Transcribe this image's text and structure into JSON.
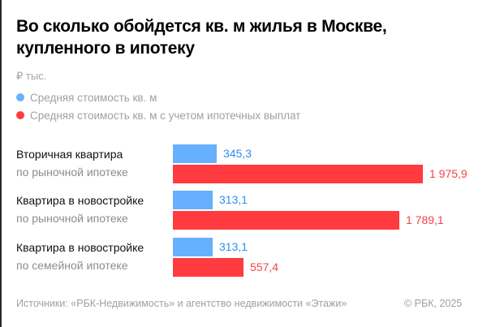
{
  "header": {
    "title": "Во сколько обойдется кв. м жилья в Москве, купленного в ипотеку",
    "unit": "₽ тыс."
  },
  "legend": [
    {
      "label": "Средняя стоимость кв. м",
      "color": "#66b0ff"
    },
    {
      "label": "Средняя стоимость кв. м с учетом ипотечных выплат",
      "color": "#ff3b3f"
    }
  ],
  "groups": [
    {
      "line1": "Вторичная квартира",
      "line2": "по рыночной ипотеке",
      "blue_label": "345,3",
      "red_label": "1 975,9"
    },
    {
      "line1": "Квартира в новостройке",
      "line2": "по рыночной ипотеке",
      "blue_label": "313,1",
      "red_label": "1 789,1"
    },
    {
      "line1": "Квартира в новостройке",
      "line2": "по семейной ипотеке",
      "blue_label": "313,1",
      "red_label": "557,4"
    }
  ],
  "footer": {
    "source": "Источники: «РБК-Недвижимость» и агентство недвижимости «Этажи»",
    "copyright": "© РБК, 2025"
  },
  "chart_data": {
    "type": "bar",
    "orientation": "horizontal",
    "title": "Во сколько обойдется кв. м жилья в Москве, купленного в ипотеку",
    "subtitle": "₽ тыс.",
    "categories": [
      "Вторичная квартира по рыночной ипотеке",
      "Квартира в новостройке по рыночной ипотеке",
      "Квартира в новостройке по семейной ипотеке"
    ],
    "series": [
      {
        "name": "Средняя стоимость кв. м",
        "color": "#66b0ff",
        "values": [
          345.3,
          313.1,
          313.1
        ]
      },
      {
        "name": "Средняя стоимость кв. м с учетом ипотечных выплат",
        "color": "#ff3b3f",
        "values": [
          1975.9,
          1789.1,
          557.4
        ]
      }
    ],
    "xlabel": "",
    "ylabel": "",
    "grid": false,
    "legend_position": "top-left",
    "source": "Источники: «РБК-Недвижимость» и агентство недвижимости «Этажи»",
    "copyright": "© РБК, 2025"
  }
}
